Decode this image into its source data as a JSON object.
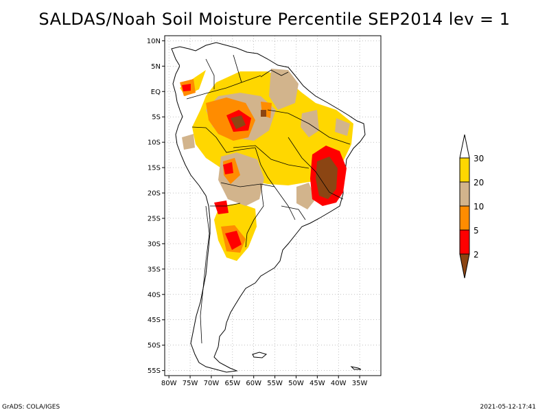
{
  "title": "SALDAS/Noah Soil Moisture Percentile SEP2014 lev = 1",
  "map": {
    "lon_range": [
      -81,
      -30
    ],
    "lat_range": [
      -56,
      11
    ],
    "lon_ticks": [
      {
        "value": -80,
        "label": "80W"
      },
      {
        "value": -75,
        "label": "75W"
      },
      {
        "value": -70,
        "label": "70W"
      },
      {
        "value": -65,
        "label": "65W"
      },
      {
        "value": -60,
        "label": "60W"
      },
      {
        "value": -55,
        "label": "55W"
      },
      {
        "value": -50,
        "label": "50W"
      },
      {
        "value": -45,
        "label": "45W"
      },
      {
        "value": -40,
        "label": "40W"
      },
      {
        "value": -35,
        "label": "35W"
      }
    ],
    "lat_ticks": [
      {
        "value": 10,
        "label": "10N"
      },
      {
        "value": 5,
        "label": "5N"
      },
      {
        "value": 0,
        "label": "EQ"
      },
      {
        "value": -5,
        "label": "5S"
      },
      {
        "value": -10,
        "label": "10S"
      },
      {
        "value": -15,
        "label": "15S"
      },
      {
        "value": -20,
        "label": "20S"
      },
      {
        "value": -25,
        "label": "25S"
      },
      {
        "value": -30,
        "label": "30S"
      },
      {
        "value": -35,
        "label": "35S"
      },
      {
        "value": -40,
        "label": "40S"
      },
      {
        "value": -45,
        "label": "45S"
      },
      {
        "value": -50,
        "label": "50S"
      },
      {
        "value": -55,
        "label": "55S"
      }
    ],
    "grid": true
  },
  "legend": {
    "type": "colorbar",
    "breaks": [
      "2",
      "5",
      "10",
      "20",
      "30"
    ],
    "colors": {
      "below_2": "#8B4513",
      "2_to_5": "#FF0000",
      "5_to_10": "#FF8C00",
      "10_to_20": "#D2B48C",
      "20_to_30": "#FFD700",
      "above_30": "#FFFFFF"
    }
  },
  "footer": {
    "left": "GrADS: COLA/IGES",
    "right": "2021-05-12-17:41"
  }
}
